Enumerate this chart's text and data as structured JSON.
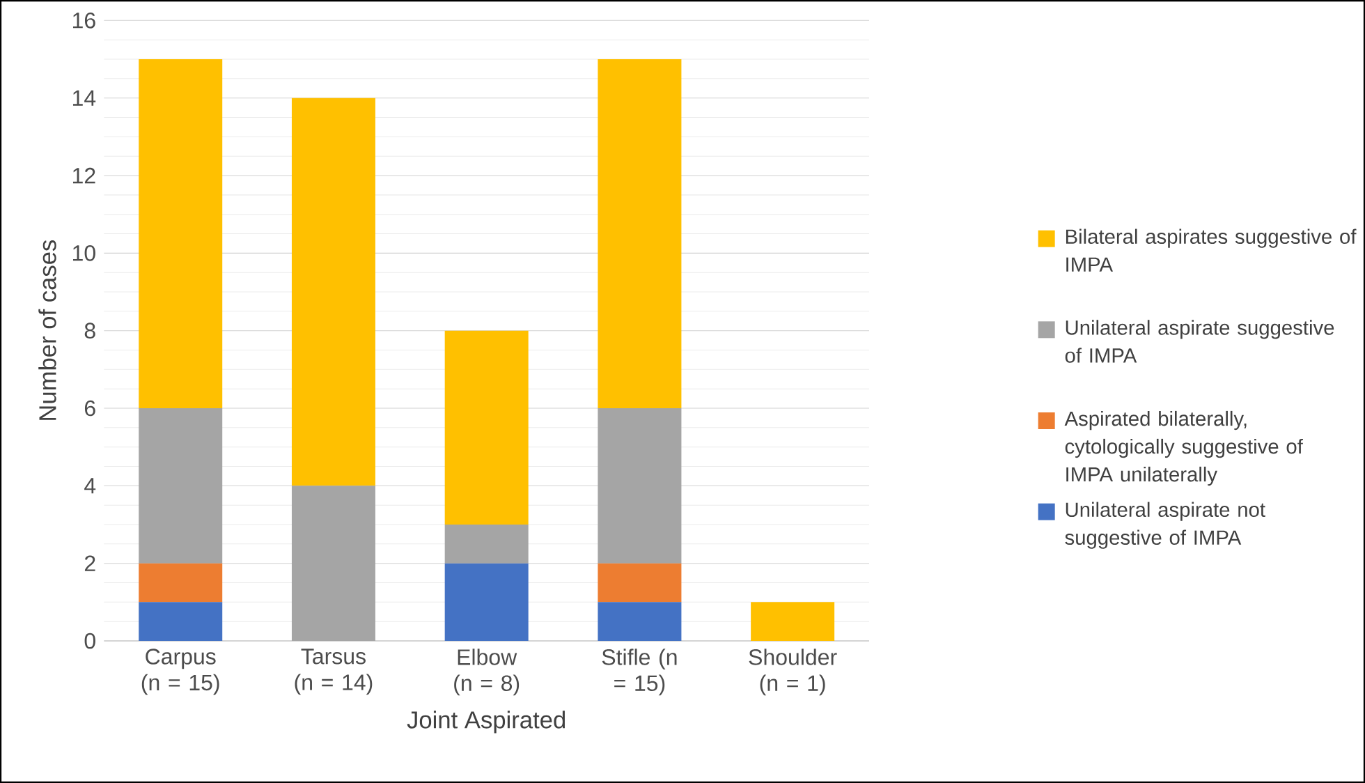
{
  "chart_data": {
    "type": "bar",
    "stacked": true,
    "xlabel": "Joint Aspirated",
    "ylabel": "Number of cases",
    "categories": [
      "Carpus (n = 15)",
      "Tarsus (n = 14)",
      "Elbow (n = 8)",
      "Stifle (n = 15)",
      "Shoulder (n = 1)"
    ],
    "series": [
      {
        "name": "Unilateral aspirate not suggestive of IMPA",
        "color": "#4472c4",
        "values": [
          1,
          0,
          2,
          1,
          0
        ]
      },
      {
        "name": "Aspirated bilaterally, cytologically suggestive of IMPA unilaterally",
        "color": "#ed7d31",
        "values": [
          1,
          0,
          0,
          1,
          0
        ]
      },
      {
        "name": "Unilateral aspirate suggestive of IMPA",
        "color": "#a5a5a5",
        "values": [
          4,
          4,
          1,
          4,
          0
        ]
      },
      {
        "name": "Bilateral aspirates suggestive of IMPA",
        "color": "#ffc000",
        "values": [
          9,
          10,
          5,
          9,
          1
        ]
      }
    ],
    "ylim": [
      0,
      16
    ],
    "yticks": [
      0,
      2,
      4,
      6,
      8,
      10,
      12,
      14,
      16
    ],
    "grid": "y",
    "legend": "right"
  }
}
